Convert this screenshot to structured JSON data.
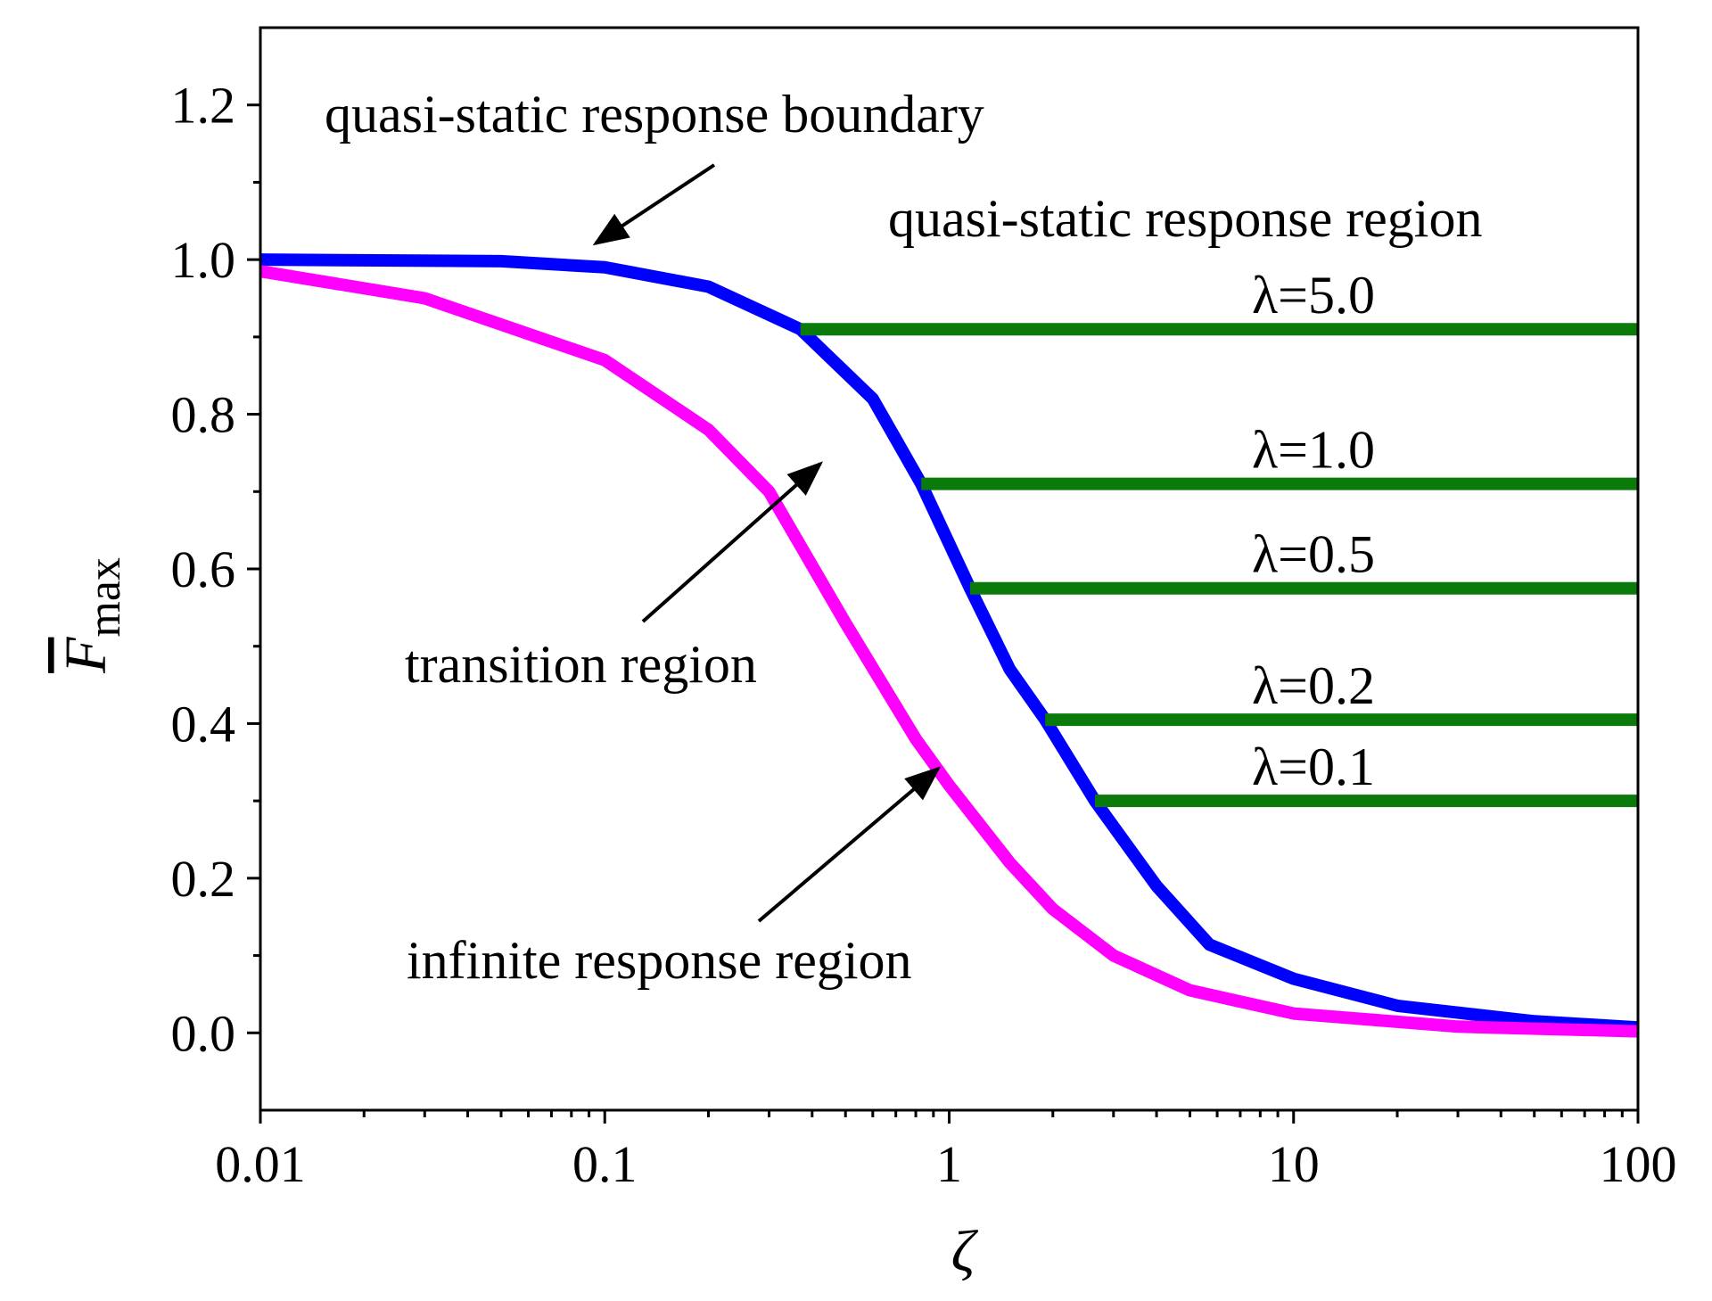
{
  "chart_data": {
    "type": "line",
    "x_label": "ζ",
    "y_label": "F",
    "y_label_sub": "max",
    "xscale": "log",
    "xlim": [
      0.01,
      100
    ],
    "xticks": [
      0.01,
      0.1,
      1,
      10,
      100
    ],
    "ylim": [
      -0.1,
      1.3
    ],
    "yticks": [
      {
        "value": 0,
        "label": "0.0"
      },
      {
        "value": 0.2,
        "label": "0.2"
      },
      {
        "value": 0.4,
        "label": "0.4"
      },
      {
        "value": 0.6,
        "label": "0.6"
      },
      {
        "value": 0.8,
        "label": "0.8"
      },
      {
        "value": 1.0,
        "label": "1.0"
      },
      {
        "value": 1.2,
        "label": "1.2"
      }
    ],
    "annotations": [
      "quasi-static response boundary",
      "quasi-static response region",
      "transition region",
      "infinite response region"
    ],
    "series": [
      {
        "color": "#0000ff",
        "x": [
          0.01,
          0.05,
          0.1,
          0.2,
          0.37,
          0.6,
          0.83,
          1.15,
          1.5,
          1.9,
          2.65,
          4,
          5.7,
          10,
          20,
          50,
          100
        ],
        "values": [
          1.0,
          0.998,
          0.99,
          0.965,
          0.91,
          0.82,
          0.71,
          0.575,
          0.47,
          0.405,
          0.3,
          0.19,
          0.114,
          0.07,
          0.035,
          0.015,
          0.007
        ]
      },
      {
        "color": "#ff00ff",
        "x": [
          0.01,
          0.03,
          0.1,
          0.2,
          0.3,
          0.5,
          0.8,
          1,
          1.5,
          2,
          3,
          5,
          10,
          30,
          100
        ],
        "values": [
          0.985,
          0.95,
          0.87,
          0.78,
          0.7,
          0.53,
          0.38,
          0.32,
          0.22,
          0.16,
          0.1,
          0.055,
          0.025,
          0.008,
          0.002
        ]
      },
      {
        "name": "λ=5.0",
        "color": "#0a7a0a",
        "x": [
          0.37,
          100
        ],
        "values": [
          0.91,
          0.91
        ]
      },
      {
        "name": "λ=1.0",
        "color": "#0a7a0a",
        "x": [
          0.83,
          100
        ],
        "values": [
          0.71,
          0.71
        ]
      },
      {
        "name": "λ=0.5",
        "color": "#0a7a0a",
        "x": [
          1.15,
          100
        ],
        "values": [
          0.575,
          0.575
        ]
      },
      {
        "name": "λ=0.2",
        "color": "#0a7a0a",
        "x": [
          1.9,
          100
        ],
        "values": [
          0.405,
          0.405
        ]
      },
      {
        "name": "λ=0.1",
        "color": "#0a7a0a",
        "x": [
          2.65,
          100
        ],
        "values": [
          0.3,
          0.3
        ]
      }
    ]
  }
}
